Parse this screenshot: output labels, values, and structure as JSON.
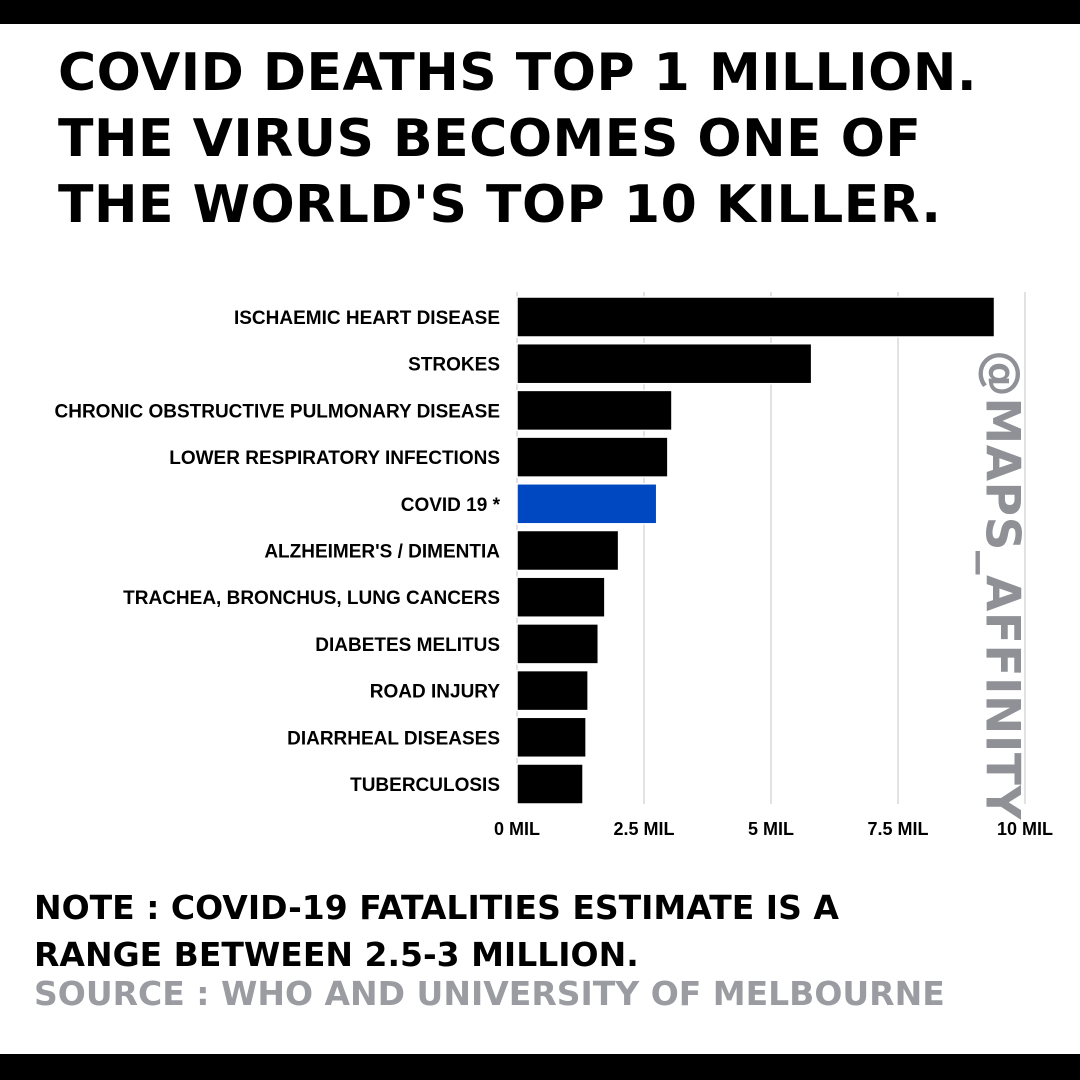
{
  "headline": {
    "lines": [
      "COVID DEATHS TOP 1 MILLION.",
      "THE VIRUS BECOMES ONE OF",
      "THE WORLD'S TOP 10 KILLER."
    ]
  },
  "watermark": "@MAPS_AFFINITY",
  "note": {
    "lines": [
      "NOTE : COVID-19 FATALITIES ESTIMATE IS A",
      "RANGE BETWEEN 2.5-3 MILLION."
    ]
  },
  "source": "SOURCE :  WHO AND UNIVERSITY OF MELBOURNE",
  "colors": {
    "bar": "#000000",
    "highlight": "#0047c2",
    "grid": "#d9d9d9"
  },
  "chart_data": {
    "type": "bar",
    "orientation": "horizontal",
    "categories": [
      "ISCHAEMIC HEART DISEASE",
      "STROKES",
      "CHRONIC OBSTRUCTIVE PULMONARY DISEASE",
      "LOWER RESPIRATORY INFECTIONS",
      "COVID 19 *",
      "ALZHEIMER'S / DIMENTIA",
      "TRACHEA, BRONCHUS, LUNG CANCERS",
      "DIABETES MELITUS",
      "ROAD INJURY",
      "DIARRHEAL DISEASES",
      "TUBERCULOSIS"
    ],
    "values": [
      9.4,
      5.8,
      3.05,
      2.97,
      2.75,
      2.0,
      1.73,
      1.6,
      1.4,
      1.36,
      1.3
    ],
    "unit": "million deaths",
    "highlight_index": 4,
    "xlim": [
      0,
      10
    ],
    "x_ticks": [
      0,
      2.5,
      5,
      7.5,
      10
    ],
    "x_tick_labels": [
      "0 MIL",
      "2.5 MIL",
      "5 MIL",
      "7.5 MIL",
      "10 MIL"
    ],
    "grid": "vertical",
    "title": "",
    "xlabel": "",
    "ylabel": ""
  }
}
